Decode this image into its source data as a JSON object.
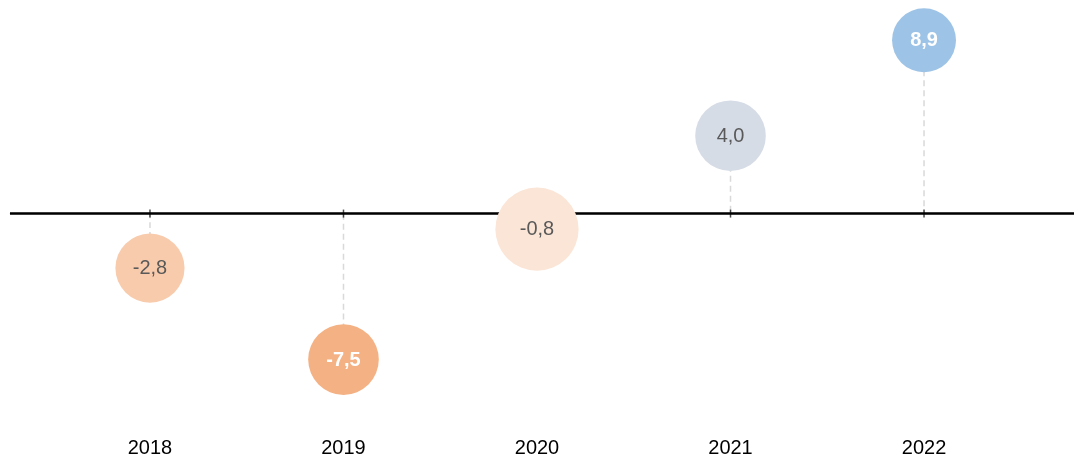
{
  "chart_data": {
    "type": "lollipop",
    "categories": [
      "2018",
      "2019",
      "2020",
      "2021",
      "2022"
    ],
    "values": [
      -2.8,
      -7.5,
      -0.8,
      4.0,
      8.9
    ],
    "value_labels": [
      "-2,8",
      "-7,5",
      "-0,8",
      "4,0",
      "8,9"
    ],
    "sizes": [
      0.69,
      0.72,
      1,
      0.72,
      0.59
    ],
    "colors": [
      "#f8cbad",
      "#f4b183",
      "#fbe5d6",
      "#d6dce5",
      "#9dc3e6"
    ],
    "line_style": "dashed",
    "grid": false
  }
}
